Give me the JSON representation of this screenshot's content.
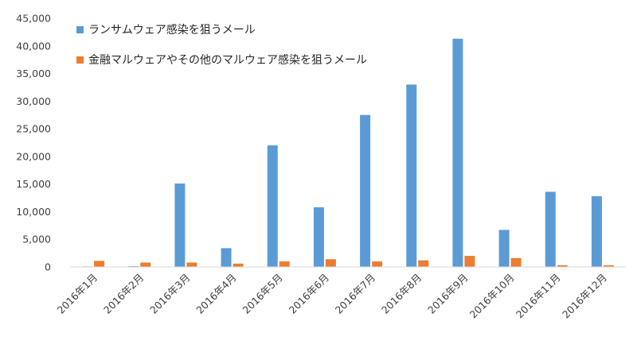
{
  "chart_data": {
    "type": "bar",
    "title": "",
    "xlabel": "",
    "ylabel": "",
    "ylim": [
      0,
      45000
    ],
    "yticks": [
      0,
      5000,
      10000,
      15000,
      20000,
      25000,
      30000,
      35000,
      40000,
      45000
    ],
    "ytick_labels": [
      "0",
      "5,000",
      "10,000",
      "15,000",
      "20,000",
      "25,000",
      "30,000",
      "35,000",
      "40,000",
      "45,000"
    ],
    "categories": [
      "2016年1月",
      "2016年2月",
      "2016年3月",
      "2016年4月",
      "2016年5月",
      "2016年6月",
      "2016年7月",
      "2016年8月",
      "2016年9月",
      "2016年10月",
      "2016年11月",
      "2016年12月"
    ],
    "series": [
      {
        "name": "ランサムウェア感染を狙うメール",
        "color": "#5b9bd5",
        "values": [
          100,
          150,
          15100,
          3400,
          22000,
          10800,
          27500,
          33000,
          41300,
          6700,
          13600,
          12800
        ]
      },
      {
        "name": "金融マルウェアやその他のマルウェア感染を狙うメール",
        "color": "#ed7d31",
        "values": [
          1100,
          800,
          800,
          600,
          1000,
          1400,
          1000,
          1200,
          2000,
          1600,
          300,
          300
        ]
      }
    ],
    "grid": false,
    "legend_position": "top-left"
  }
}
